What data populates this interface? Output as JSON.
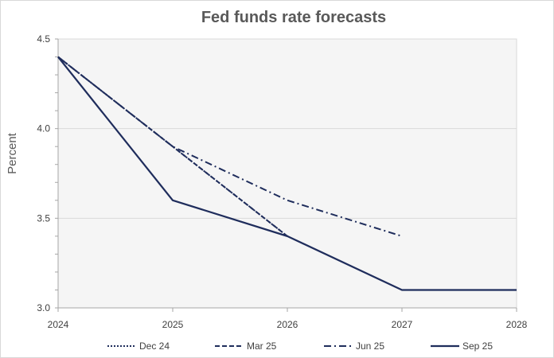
{
  "chart_data": {
    "type": "line",
    "title": "Fed funds rate forecasts",
    "xlabel": "",
    "ylabel": "Percent",
    "x": [
      2024,
      2025,
      2026,
      2027,
      2028
    ],
    "x_tick_labels": [
      "2024",
      "2025",
      "2026",
      "2027",
      "2028"
    ],
    "xlim": [
      2024,
      2028
    ],
    "ylim": [
      3.0,
      4.5
    ],
    "y_ticks": [
      3.0,
      3.5,
      4.0,
      4.5
    ],
    "y_tick_labels": [
      "3.0",
      "3.5",
      "4.0",
      "4.5"
    ],
    "grid": true,
    "legend_position": "bottom",
    "series": [
      {
        "name": "Dec 24",
        "style": "dotted",
        "color": "#1f2d5c",
        "x": [
          2024,
          2025,
          2026
        ],
        "values": [
          4.4,
          3.9,
          3.4
        ]
      },
      {
        "name": "Mar 25",
        "style": "dashed",
        "color": "#1f2d5c",
        "x": [
          2024,
          2025,
          2026
        ],
        "values": [
          4.4,
          3.9,
          3.4
        ]
      },
      {
        "name": "Jun 25",
        "style": "dashdot",
        "color": "#1f2d5c",
        "x": [
          2024,
          2025,
          2026,
          2027
        ],
        "values": [
          4.4,
          3.9,
          3.6,
          3.4
        ]
      },
      {
        "name": "Sep 25",
        "style": "solid",
        "color": "#1f2d5c",
        "x": [
          2024,
          2025,
          2026,
          2027,
          2028
        ],
        "values": [
          4.4,
          3.6,
          3.4,
          3.1,
          3.1
        ]
      }
    ]
  }
}
